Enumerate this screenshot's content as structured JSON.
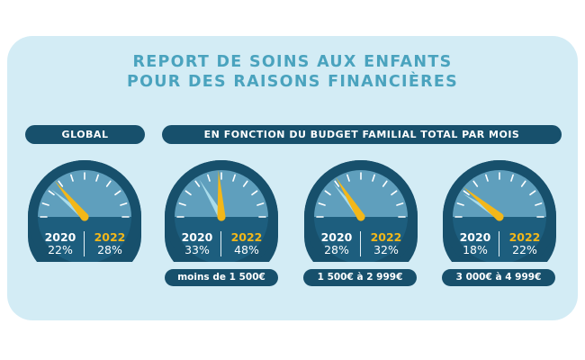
{
  "title": {
    "line1": "REPORT DE SOINS AUX ENFANTS",
    "line2": "POUR DES RAISONS FINANCIÈRES"
  },
  "headers": {
    "global": "GLOBAL",
    "budget": "EN FONCTION DU BUDGET FAMILIAL TOTAL PAR MOIS"
  },
  "colors": {
    "panel": "#d3ecf5",
    "title": "#4aa3be",
    "dark": "#17506c",
    "needle_2020": "#a9dceb",
    "needle_2022": "#f3b719"
  },
  "chart_data": {
    "type": "gauge",
    "value_range": [
      0,
      100
    ],
    "series": [
      {
        "name": "2020",
        "values": [
          22,
          33,
          28,
          18
        ]
      },
      {
        "name": "2022",
        "values": [
          28,
          48,
          32,
          22
        ]
      }
    ],
    "gauges": [
      {
        "category": "",
        "y2020": "2020",
        "v2020": "22%",
        "y2022": "2022",
        "v2022": "28%"
      },
      {
        "category": "moins de 1 500€",
        "y2020": "2020",
        "v2020": "33%",
        "y2022": "2022",
        "v2022": "48%"
      },
      {
        "category": "1 500€ à 2 999€",
        "y2020": "2020",
        "v2020": "28%",
        "y2022": "2022",
        "v2022": "32%"
      },
      {
        "category": "3 000€ à 4 999€",
        "y2020": "2020",
        "v2020": "18%",
        "y2022": "2022",
        "v2022": "22%"
      }
    ]
  }
}
